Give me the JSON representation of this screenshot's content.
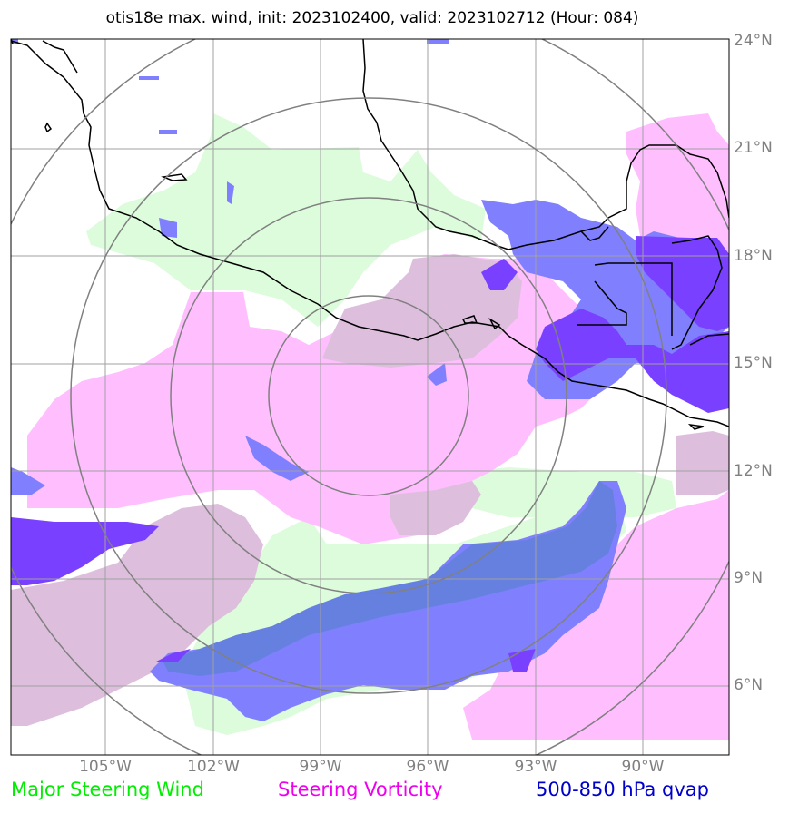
{
  "title": "otis18e max. wind, init: 2023102400, valid: 2023102712 (Hour: 084)",
  "lat_labels": [
    "24°N",
    "21°N",
    "18°N",
    "15°N",
    "12°N",
    "9°N",
    "6°N"
  ],
  "lon_labels": [
    "105°W",
    "102°W",
    "99°W",
    "96°W",
    "93°W",
    "90°W"
  ],
  "legend": [
    {
      "label": "Major Steering Wind",
      "color": "#00ee00"
    },
    {
      "label": "Steering Vorticity",
      "color": "#ee00ee"
    },
    {
      "label": "500-850 hPa qvap",
      "color": "#0000cc"
    }
  ],
  "colors": {
    "steering_wind_fill": "#dcfcdc",
    "vorticity_fill": "#ffbfff",
    "overlap_fill": "#ddbfdd",
    "qvap_fill": "#8080ff",
    "qvap_overlap_fill": "#6680e0",
    "qvap_strong": "#7a40ff",
    "coastline": "#000000",
    "grid": "#a0a0a0",
    "range_rings": "#808080"
  }
}
